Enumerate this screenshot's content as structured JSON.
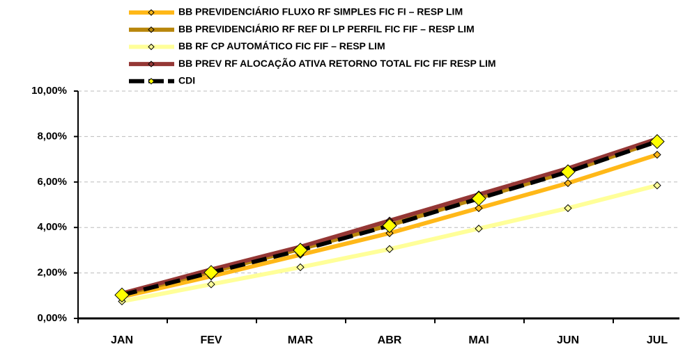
{
  "chart_data": {
    "type": "line",
    "categories": [
      "JAN",
      "FEV",
      "MAR",
      "ABR",
      "MAI",
      "JUN",
      "JUL"
    ],
    "series": [
      {
        "name": "BB PREVIDENCIÁRIO FLUXO RF SIMPLES FIC FI – RESP LIM",
        "color": "#FFB818",
        "marker_color": "#FFB818",
        "values": [
          0.95,
          1.85,
          2.8,
          3.75,
          4.85,
          5.95,
          7.2
        ]
      },
      {
        "name": "BB PREVIDENCIÁRIO RF REF DI LP PERFIL FIC FIF – RESP LIM",
        "color": "#B8860B",
        "marker_color": "#B8860B",
        "values": [
          1.05,
          2.05,
          3.05,
          4.1,
          5.3,
          6.45,
          7.8
        ]
      },
      {
        "name": "BB RF CP AUTOMÁTICO FIC FIF – RESP LIM",
        "color": "#FFFF99",
        "marker_color": "#FFFF99",
        "values": [
          0.75,
          1.5,
          2.25,
          3.05,
          3.95,
          4.85,
          5.85
        ]
      },
      {
        "name": "BB PREV RF ALOCAÇÃO ATIVA RETORNO TOTAL FIC FIF RESP LIM",
        "color": "#953735",
        "marker_color": "#953735",
        "values": [
          1.1,
          2.15,
          3.15,
          4.3,
          5.45,
          6.6,
          7.9
        ]
      },
      {
        "name": "CDI",
        "color": "#000000",
        "marker_color": "#FFFF00",
        "values": [
          1.03,
          2.02,
          3.0,
          4.08,
          5.27,
          6.45,
          7.78
        ]
      }
    ],
    "ylim": [
      0,
      10
    ],
    "yticks": [
      {
        "value": 0,
        "label": "0,00%"
      },
      {
        "value": 2,
        "label": "2,00%"
      },
      {
        "value": 4,
        "label": "4,00%"
      },
      {
        "value": 6,
        "label": "6,00%"
      },
      {
        "value": 8,
        "label": "8,00%"
      },
      {
        "value": 10,
        "label": "10,00%"
      }
    ],
    "grid": true
  }
}
